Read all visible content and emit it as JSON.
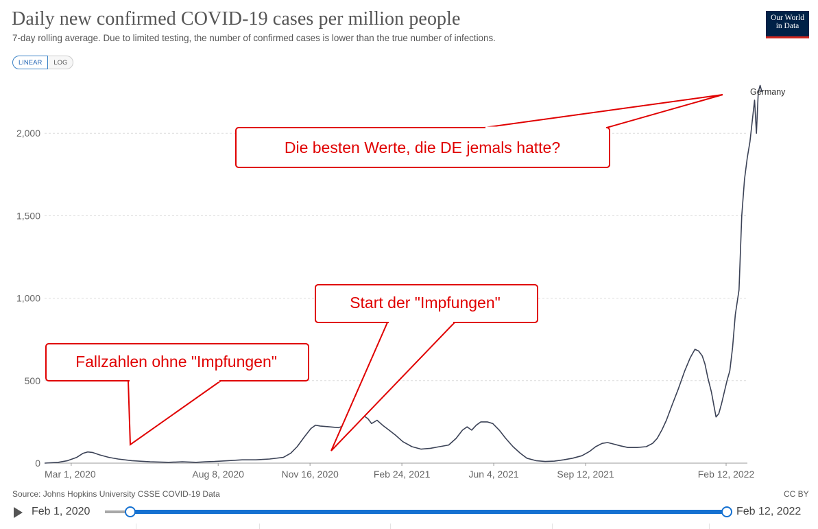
{
  "header": {
    "title": "Daily new confirmed COVID-19 cases per million people",
    "subtitle": "7-day rolling average. Due to limited testing, the number of confirmed cases is lower than the true number of infections.",
    "logo_line1": "Our World",
    "logo_line2": "in Data"
  },
  "scale_toggle": {
    "linear_label": "LINEAR",
    "log_label": "LOG",
    "selected": "LINEAR"
  },
  "chart_data": {
    "type": "line",
    "title": "Daily new confirmed COVID-19 cases per million people",
    "xlabel": "",
    "ylabel": "",
    "ylim": [
      0,
      2300
    ],
    "yticks": [
      0,
      500,
      1000,
      1500,
      2000
    ],
    "ytick_labels": [
      "0",
      "500",
      "1,000",
      "1,500",
      "2,000"
    ],
    "xticks": [
      {
        "label": "Mar 1, 2020",
        "day": 29
      },
      {
        "label": "Aug 8, 2020",
        "day": 189
      },
      {
        "label": "Nov 16, 2020",
        "day": 289
      },
      {
        "label": "Feb 24, 2021",
        "day": 389
      },
      {
        "label": "Jun 4, 2021",
        "day": 489
      },
      {
        "label": "Sep 12, 2021",
        "day": 589
      },
      {
        "label": "Feb 12, 2022",
        "day": 742
      }
    ],
    "x_range_days": [
      0,
      742
    ],
    "grid": true,
    "series": [
      {
        "name": "Germany",
        "color": "#3b4256",
        "points": [
          [
            0,
            0
          ],
          [
            15,
            5
          ],
          [
            25,
            15
          ],
          [
            35,
            35
          ],
          [
            42,
            60
          ],
          [
            47,
            68
          ],
          [
            52,
            65
          ],
          [
            60,
            50
          ],
          [
            70,
            35
          ],
          [
            80,
            25
          ],
          [
            95,
            15
          ],
          [
            115,
            8
          ],
          [
            135,
            5
          ],
          [
            150,
            8
          ],
          [
            165,
            5
          ],
          [
            175,
            8
          ],
          [
            185,
            10
          ],
          [
            200,
            15
          ],
          [
            215,
            20
          ],
          [
            230,
            20
          ],
          [
            245,
            25
          ],
          [
            260,
            35
          ],
          [
            268,
            60
          ],
          [
            275,
            100
          ],
          [
            283,
            160
          ],
          [
            290,
            210
          ],
          [
            295,
            230
          ],
          [
            300,
            225
          ],
          [
            310,
            220
          ],
          [
            320,
            215
          ],
          [
            328,
            230
          ],
          [
            335,
            260
          ],
          [
            340,
            280
          ],
          [
            345,
            300
          ],
          [
            348,
            285
          ],
          [
            352,
            270
          ],
          [
            356,
            240
          ],
          [
            362,
            260
          ],
          [
            368,
            230
          ],
          [
            375,
            200
          ],
          [
            382,
            170
          ],
          [
            390,
            130
          ],
          [
            400,
            100
          ],
          [
            410,
            85
          ],
          [
            420,
            90
          ],
          [
            430,
            100
          ],
          [
            440,
            110
          ],
          [
            448,
            150
          ],
          [
            455,
            200
          ],
          [
            460,
            220
          ],
          [
            465,
            200
          ],
          [
            470,
            230
          ],
          [
            475,
            250
          ],
          [
            482,
            250
          ],
          [
            488,
            240
          ],
          [
            495,
            200
          ],
          [
            502,
            150
          ],
          [
            510,
            100
          ],
          [
            518,
            60
          ],
          [
            525,
            30
          ],
          [
            535,
            15
          ],
          [
            545,
            10
          ],
          [
            555,
            12
          ],
          [
            565,
            20
          ],
          [
            575,
            30
          ],
          [
            585,
            45
          ],
          [
            593,
            70
          ],
          [
            600,
            100
          ],
          [
            607,
            120
          ],
          [
            613,
            125
          ],
          [
            620,
            115
          ],
          [
            627,
            105
          ],
          [
            635,
            95
          ],
          [
            645,
            95
          ],
          [
            655,
            100
          ],
          [
            662,
            120
          ],
          [
            667,
            150
          ],
          [
            672,
            200
          ],
          [
            677,
            260
          ],
          [
            683,
            350
          ],
          [
            690,
            450
          ],
          [
            697,
            560
          ],
          [
            703,
            640
          ],
          [
            708,
            690
          ],
          [
            712,
            680
          ],
          [
            716,
            650
          ],
          [
            719,
            600
          ],
          [
            722,
            520
          ],
          [
            726,
            430
          ],
          [
            729,
            340
          ],
          [
            731,
            280
          ],
          [
            734,
            300
          ],
          [
            737,
            360
          ],
          [
            740,
            430
          ],
          [
            743,
            500
          ],
          [
            746,
            560
          ],
          [
            749,
            700
          ],
          [
            752,
            900
          ],
          [
            756,
            1050
          ],
          [
            759,
            1500
          ],
          [
            762,
            1720
          ],
          [
            765,
            1850
          ],
          [
            768,
            1950
          ],
          [
            771,
            2100
          ],
          [
            773,
            2200
          ],
          [
            775,
            2000
          ],
          [
            777,
            2250
          ],
          [
            779,
            2290
          ],
          [
            781,
            2250
          ]
        ]
      }
    ],
    "series_label": "Germany"
  },
  "annotations": [
    {
      "text": "Die besten Werte, die DE jemals hatte?"
    },
    {
      "text": "Start der \"Impfungen\""
    },
    {
      "text": "Fallzahlen ohne \"Impfungen\""
    }
  ],
  "footer": {
    "source": "Source: Johns Hopkins University CSSE COVID-19 Data",
    "license": "CC BY"
  },
  "timeline": {
    "start_label": "Feb 1, 2020",
    "end_label": "Feb 12, 2022"
  }
}
